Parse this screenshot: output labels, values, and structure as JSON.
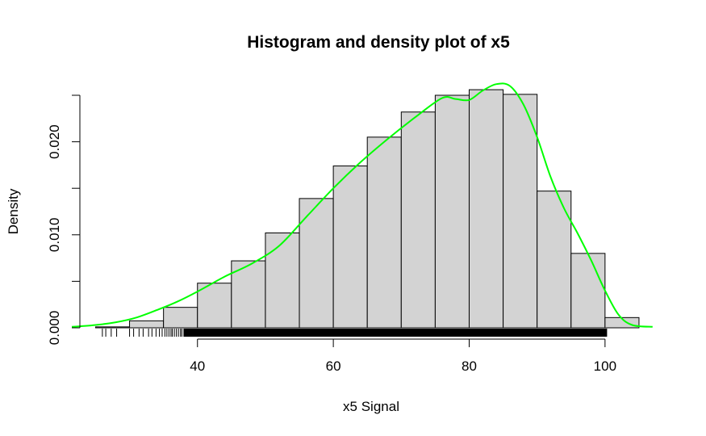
{
  "chart_data": {
    "type": "histogram",
    "title": "Histogram and density plot of x5",
    "xlabel": "x5 Signal",
    "ylabel": "Density",
    "xlim": [
      21.5,
      107.5
    ],
    "ylim": [
      0,
      0.025
    ],
    "x_ticks": [
      40,
      60,
      80,
      100
    ],
    "x_tick_labels": [
      "40",
      "60",
      "80",
      "100"
    ],
    "y_ticks": [
      0,
      0.005,
      0.01,
      0.015,
      0.02,
      0.025
    ],
    "y_tick_labels": [
      "0.000",
      "",
      "0.010",
      "",
      "0.020",
      ""
    ],
    "grid": false,
    "bar_fill": "#d3d3d3",
    "bar_edge": "#000000",
    "density_color": "#00ff00",
    "bins": [
      {
        "x0": 25,
        "x1": 30,
        "density": 0.0001
      },
      {
        "x0": 30,
        "x1": 35,
        "density": 0.00075
      },
      {
        "x0": 35,
        "x1": 40,
        "density": 0.0022
      },
      {
        "x0": 40,
        "x1": 45,
        "density": 0.0048
      },
      {
        "x0": 45,
        "x1": 50,
        "density": 0.0072
      },
      {
        "x0": 50,
        "x1": 55,
        "density": 0.0102
      },
      {
        "x0": 55,
        "x1": 60,
        "density": 0.0139
      },
      {
        "x0": 60,
        "x1": 65,
        "density": 0.0174
      },
      {
        "x0": 65,
        "x1": 70,
        "density": 0.0205
      },
      {
        "x0": 70,
        "x1": 75,
        "density": 0.0232
      },
      {
        "x0": 75,
        "x1": 80,
        "density": 0.025
      },
      {
        "x0": 80,
        "x1": 85,
        "density": 0.0256
      },
      {
        "x0": 85,
        "x1": 90,
        "density": 0.0251
      },
      {
        "x0": 90,
        "x1": 95,
        "density": 0.0147
      },
      {
        "x0": 95,
        "x1": 100,
        "density": 0.008
      },
      {
        "x0": 100,
        "x1": 105,
        "density": 0.0011
      }
    ],
    "density_curve": {
      "x": [
        21.5,
        25,
        28,
        31,
        34,
        37,
        40,
        44,
        48,
        52,
        56,
        60,
        64,
        68,
        72,
        76,
        78,
        80,
        82,
        84,
        86,
        88,
        90,
        92,
        94,
        96,
        98,
        100,
        102,
        104,
        107
      ],
      "y": [
        0.0001,
        0.0003,
        0.0006,
        0.0011,
        0.0019,
        0.0028,
        0.0039,
        0.0055,
        0.0069,
        0.0088,
        0.0119,
        0.015,
        0.0178,
        0.0203,
        0.0226,
        0.0247,
        0.0246,
        0.0245,
        0.0255,
        0.0262,
        0.026,
        0.024,
        0.0205,
        0.0162,
        0.0128,
        0.0101,
        0.0072,
        0.004,
        0.0014,
        0.0003,
        0.0001
      ]
    },
    "rug": {
      "sparse_x": [
        26.0,
        26.5,
        27.3,
        28.1,
        30.0,
        30.6,
        31.4,
        32.0,
        32.8,
        33.3,
        33.9,
        34.4,
        34.8,
        35.2,
        35.5,
        35.8,
        36.1,
        36.3,
        36.6,
        36.9,
        37.2,
        37.5,
        37.7,
        38.0
      ],
      "dense_range": [
        38.0,
        100.3
      ]
    }
  }
}
